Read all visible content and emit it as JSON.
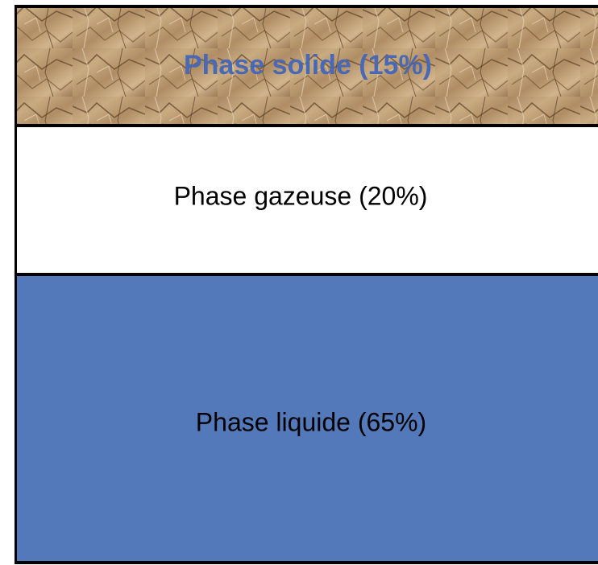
{
  "layers": [
    {
      "label": "Phase solide (15%)"
    },
    {
      "label": "Phase gazeuse (20%)"
    },
    {
      "label": "Phase liquide (65%)"
    }
  ]
}
